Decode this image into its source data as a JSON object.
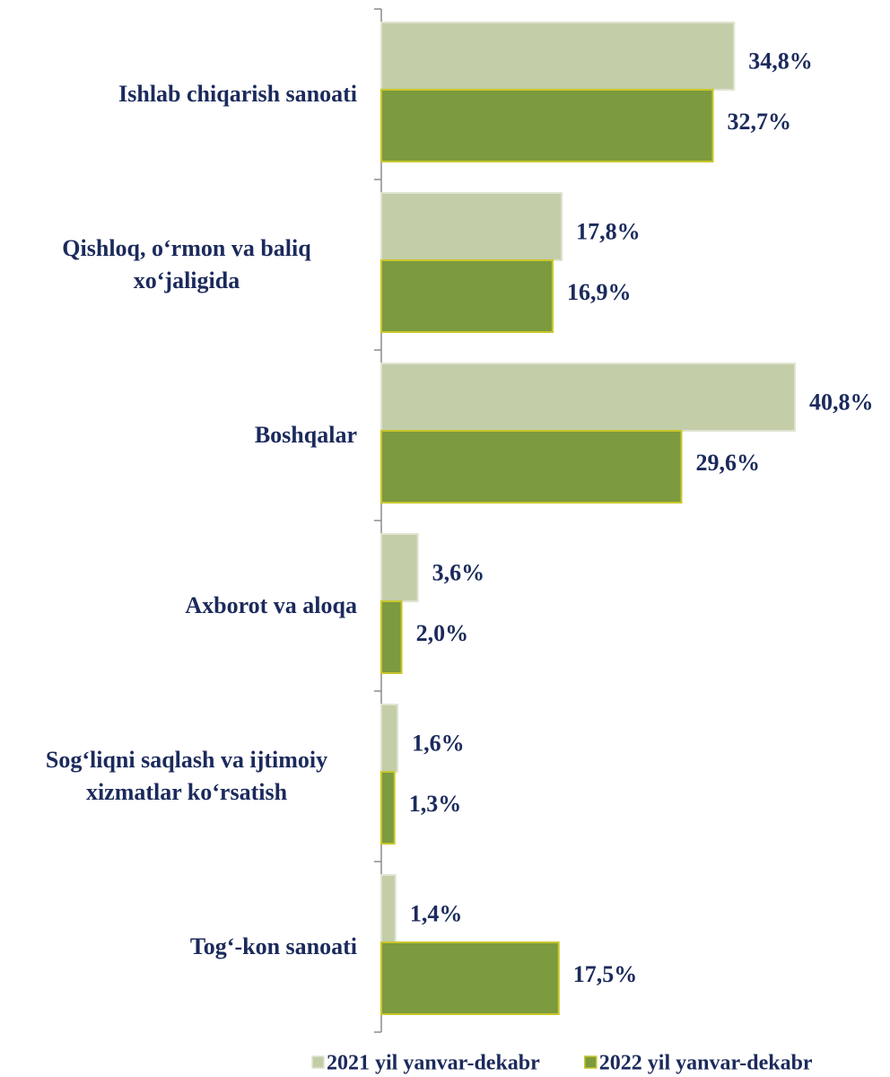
{
  "chart_data": {
    "type": "bar",
    "orientation": "horizontal",
    "categories": [
      "Ishlab chiqarish sanoati",
      "Qishloq, o‘rmon va baliq xo‘jaligida",
      "Boshqalar",
      "Axborot va aloqa",
      "Sog‘liqni saqlash va ijtimoiy xizmatlar ko‘rsatish",
      "Tog‘-kon sanoati"
    ],
    "series": [
      {
        "name": "2021 yil yanvar-dekabr",
        "color": "#c3cda8",
        "values": [
          34.8,
          17.8,
          40.8,
          3.6,
          1.6,
          1.4
        ],
        "value_labels": [
          "34,8%",
          "17,8%",
          "40,8%",
          "3,6%",
          "1,6%",
          "1,4%"
        ]
      },
      {
        "name": "2022 yil yanvar-dekabr",
        "color": "#7c9a3e",
        "values": [
          32.7,
          16.9,
          29.6,
          2.0,
          1.3,
          17.5
        ],
        "value_labels": [
          "32,7%",
          "16,9%",
          "29,6%",
          "2,0%",
          "1,3%",
          "17,5%"
        ]
      }
    ],
    "xlim": [
      0,
      50
    ],
    "legend": "bottom"
  }
}
